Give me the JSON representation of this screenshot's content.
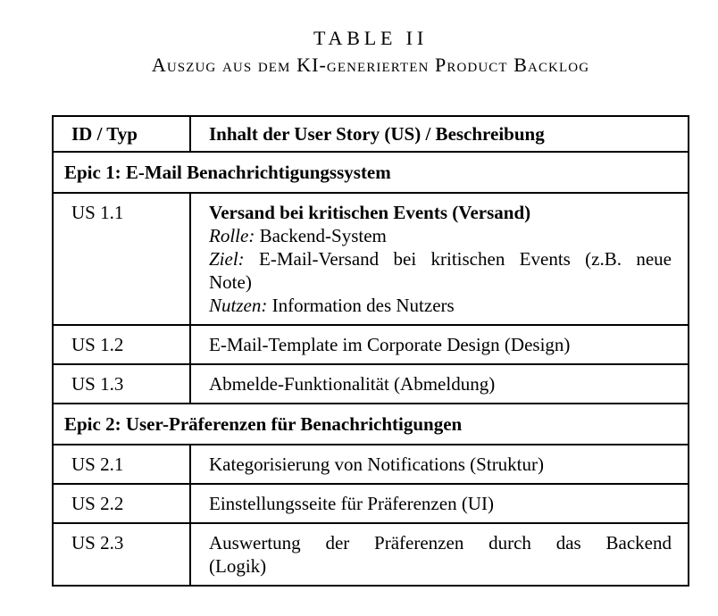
{
  "colors": {
    "background": "#ffffff",
    "text": "#000000",
    "border": "#000000"
  },
  "caption": {
    "label": "TABLE II",
    "title": "Auszug aus dem KI-generierten Product Backlog"
  },
  "table": {
    "columns": [
      "ID / Typ",
      "Inhalt der User Story (US) / Beschreibung"
    ],
    "rows": [
      {
        "kind": "epic",
        "text": "Epic 1: E-Mail Benachrichtigungssystem"
      },
      {
        "kind": "story",
        "id": "US 1.1",
        "title": "Versand bei kritischen Events (Versand)",
        "fields": [
          {
            "label": "Rolle:",
            "value": "Backend-System"
          },
          {
            "label": "Ziel:",
            "value": "E-Mail-Versand bei kritischen Events (z.B. neue Note)"
          },
          {
            "label": "Nutzen:",
            "value": "Information des Nutzers"
          }
        ]
      },
      {
        "kind": "story",
        "id": "US 1.2",
        "description": "E-Mail-Template im Corporate Design (Design)"
      },
      {
        "kind": "story",
        "id": "US 1.3",
        "description": "Abmelde-Funktionalität (Abmeldung)"
      },
      {
        "kind": "epic",
        "text": "Epic 2: User-Präferenzen für Benachrichtigungen"
      },
      {
        "kind": "story",
        "id": "US 2.1",
        "description": "Kategorisierung von Notifications (Struktur)"
      },
      {
        "kind": "story",
        "id": "US 2.2",
        "description": "Einstellungsseite für Präferenzen (UI)"
      },
      {
        "kind": "story",
        "id": "US 2.3",
        "description": "Auswertung der Präferenzen durch das Backend (Logik)"
      }
    ]
  }
}
